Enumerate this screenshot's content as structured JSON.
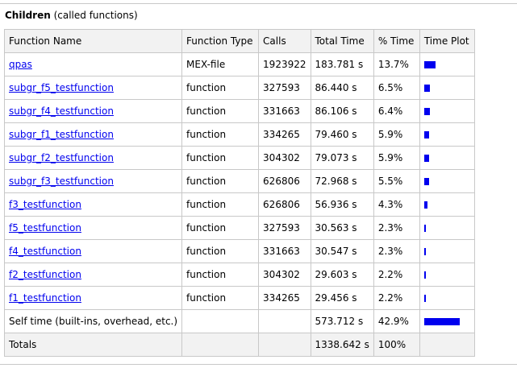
{
  "heading": {
    "bold": "Children",
    "sub": "(called functions)"
  },
  "columns": [
    "Function Name",
    "Function Type",
    "Calls",
    "Total Time",
    "% Time",
    "Time Plot"
  ],
  "rows": [
    {
      "name": "qpas",
      "type": "MEX-file",
      "calls": "1923922",
      "total": "183.781 s",
      "pct": "13.7%",
      "plot_pct": 13.7
    },
    {
      "name": "subgr_f5_testfunction",
      "type": "function",
      "calls": "327593",
      "total": "86.440 s",
      "pct": "6.5%",
      "plot_pct": 6.5
    },
    {
      "name": "subgr_f4_testfunction",
      "type": "function",
      "calls": "331663",
      "total": "86.106 s",
      "pct": "6.4%",
      "plot_pct": 6.4
    },
    {
      "name": "subgr_f1_testfunction",
      "type": "function",
      "calls": "334265",
      "total": "79.460 s",
      "pct": "5.9%",
      "plot_pct": 5.9
    },
    {
      "name": "subgr_f2_testfunction",
      "type": "function",
      "calls": "304302",
      "total": "79.073 s",
      "pct": "5.9%",
      "plot_pct": 5.9
    },
    {
      "name": "subgr_f3_testfunction",
      "type": "function",
      "calls": "626806",
      "total": "72.968 s",
      "pct": "5.5%",
      "plot_pct": 5.5
    },
    {
      "name": "f3_testfunction",
      "type": "function",
      "calls": "626806",
      "total": "56.936 s",
      "pct": "4.3%",
      "plot_pct": 4.3
    },
    {
      "name": "f5_testfunction",
      "type": "function",
      "calls": "327593",
      "total": "30.563 s",
      "pct": "2.3%",
      "plot_pct": 2.3
    },
    {
      "name": "f4_testfunction",
      "type": "function",
      "calls": "331663",
      "total": "30.547 s",
      "pct": "2.3%",
      "plot_pct": 2.3
    },
    {
      "name": "f2_testfunction",
      "type": "function",
      "calls": "304302",
      "total": "29.603 s",
      "pct": "2.2%",
      "plot_pct": 2.2
    },
    {
      "name": "f1_testfunction",
      "type": "function",
      "calls": "334265",
      "total": "29.456 s",
      "pct": "2.2%",
      "plot_pct": 2.2
    }
  ],
  "self_time": {
    "label": "Self time (built-ins, overhead, etc.)",
    "total": "573.712 s",
    "pct": "42.9%",
    "plot_pct": 42.9
  },
  "totals": {
    "label": "Totals",
    "total": "1338.642 s",
    "pct": "100%"
  },
  "colors": {
    "link": "#0000ee",
    "bar": "#0000ee",
    "border": "#c8c8c8",
    "header_bg": "#f2f2f2"
  }
}
